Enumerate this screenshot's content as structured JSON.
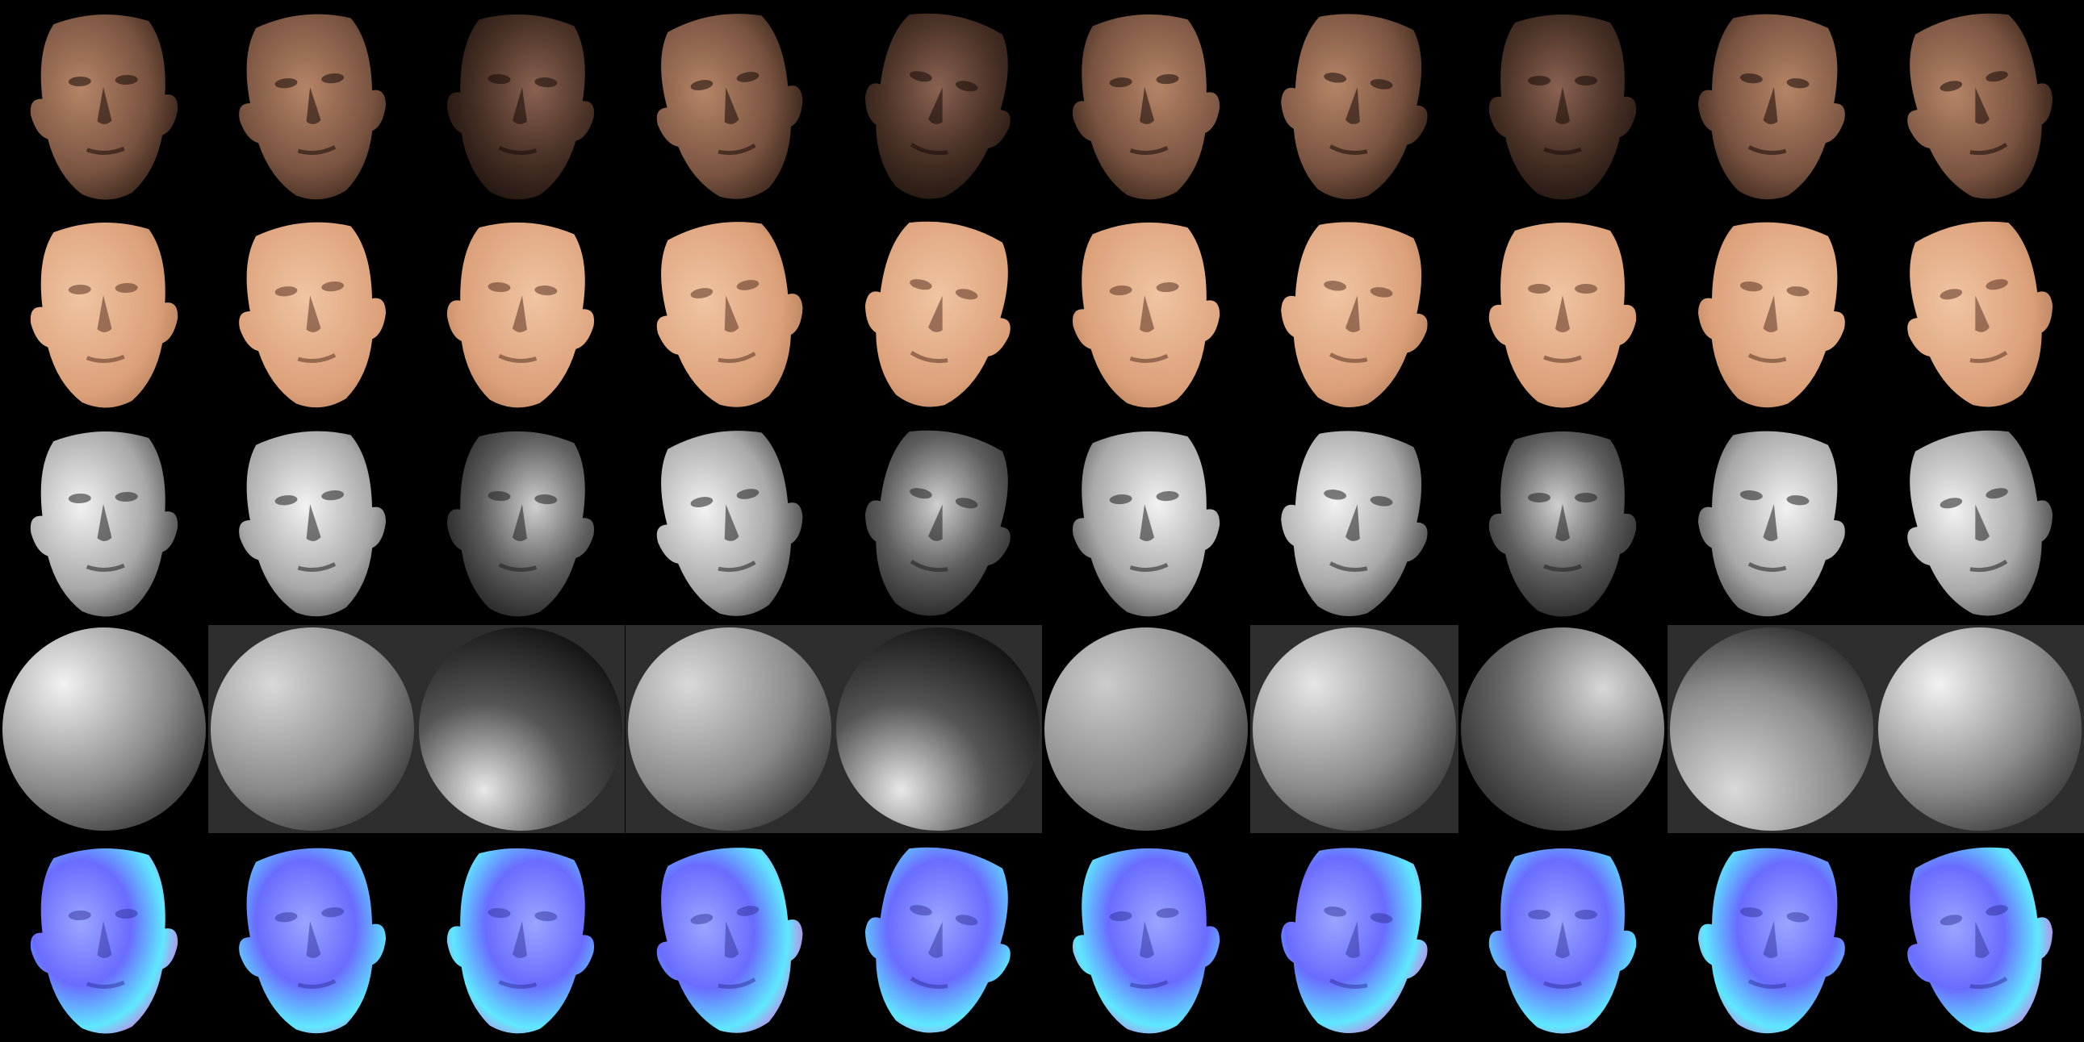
{
  "rows": [
    {
      "kind": "shaded-face",
      "count": 10
    },
    {
      "kind": "albedo-face",
      "count": 10
    },
    {
      "kind": "shading-face",
      "count": 10
    },
    {
      "kind": "lighting-sphere",
      "count": 10
    },
    {
      "kind": "normal-map-face",
      "count": 10
    }
  ],
  "colors": {
    "background": "#000000",
    "sphere_panel": "#2e2e2e",
    "skin_dark": "#5a3b2c",
    "skin_light": "#d9a07a",
    "normal_blue": "#6a6cff",
    "normal_magenta": "#ff4fd2",
    "normal_cyan": "#5fe8ff"
  },
  "sphere_light": [
    {
      "dir": "top-left",
      "brightness": 0.95,
      "panel": false
    },
    {
      "dir": "top-left",
      "brightness": 0.85,
      "panel": true
    },
    {
      "dir": "bottom-left",
      "brightness": 0.7,
      "panel": true
    },
    {
      "dir": "top-left",
      "brightness": 0.85,
      "panel": true
    },
    {
      "dir": "bottom-left",
      "brightness": 0.75,
      "panel": true
    },
    {
      "dir": "top-left",
      "brightness": 0.8,
      "panel": false
    },
    {
      "dir": "top-left",
      "brightness": 0.9,
      "panel": true
    },
    {
      "dir": "top-right",
      "brightness": 0.8,
      "panel": false
    },
    {
      "dir": "bottom-left",
      "brightness": 0.85,
      "panel": true
    },
    {
      "dir": "top-left",
      "brightness": 0.95,
      "panel": true
    }
  ]
}
